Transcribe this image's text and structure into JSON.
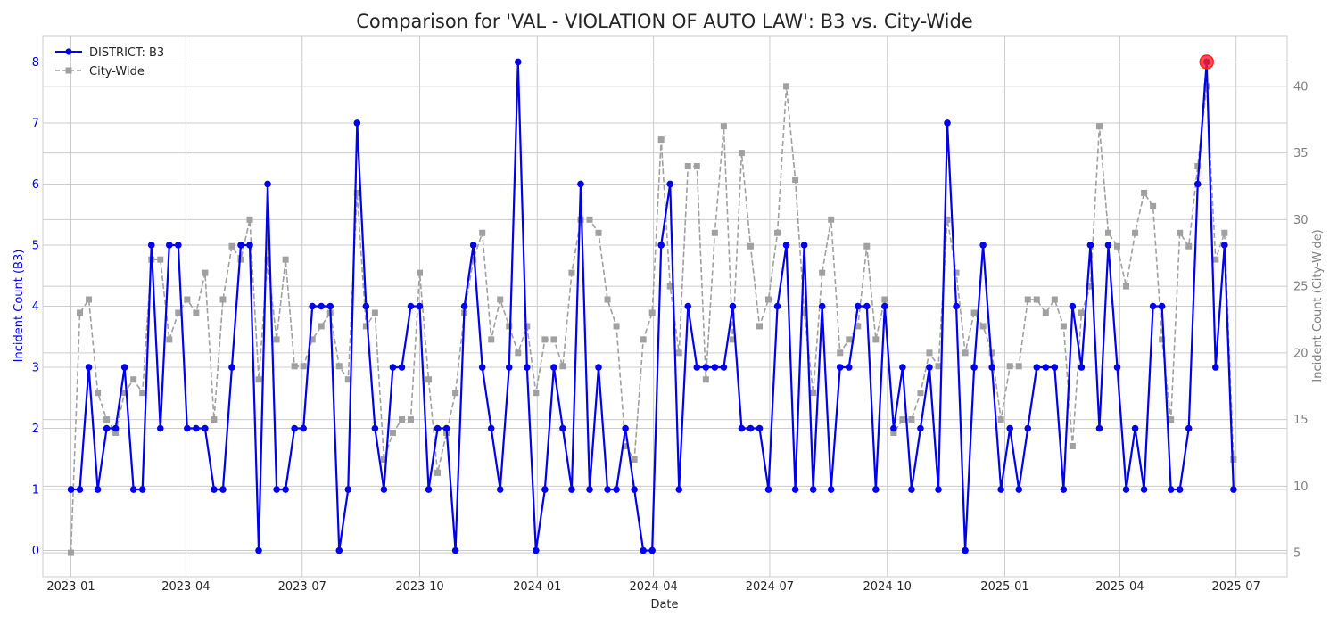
{
  "chart_data": {
    "type": "line",
    "title": "Comparison for 'VAL - VIOLATION OF AUTO LAW': B3 vs. City-Wide",
    "xlabel": "Date",
    "ylabel_left": "Incident Count (B3)",
    "ylabel_right": "Incident Count (City-Wide)",
    "x_range": [
      "2022-12-10",
      "2025-08-10"
    ],
    "ylim_left": [
      -0.43,
      8.43
    ],
    "ylim_right": [
      3.2,
      43.8
    ],
    "x_ticks": [
      {
        "date": "2023-01-01",
        "label": "2023-01"
      },
      {
        "date": "2023-04-01",
        "label": "2023-04"
      },
      {
        "date": "2023-07-01",
        "label": "2023-07"
      },
      {
        "date": "2023-10-01",
        "label": "2023-10"
      },
      {
        "date": "2024-01-01",
        "label": "2024-01"
      },
      {
        "date": "2024-04-01",
        "label": "2024-04"
      },
      {
        "date": "2024-07-01",
        "label": "2024-07"
      },
      {
        "date": "2024-10-01",
        "label": "2024-10"
      },
      {
        "date": "2025-01-01",
        "label": "2025-01"
      },
      {
        "date": "2025-04-01",
        "label": "2025-04"
      },
      {
        "date": "2025-07-01",
        "label": "2025-07"
      }
    ],
    "y_ticks_left": [
      "0",
      "1",
      "2",
      "3",
      "4",
      "5",
      "6",
      "7",
      "8"
    ],
    "y_ticks_right": [
      "5",
      "10",
      "15",
      "20",
      "25",
      "30",
      "35",
      "40"
    ],
    "grid": true,
    "legend_position": "top-left",
    "start_date": "2023-01-01",
    "step_days": 7,
    "series": [
      {
        "name": "DISTRICT: B3",
        "axis": "left",
        "color": "#0000ee",
        "marker": "circle",
        "line_style": "solid",
        "values": [
          1,
          1,
          3,
          1,
          2,
          2,
          3,
          1,
          1,
          5,
          2,
          5,
          5,
          2,
          2,
          2,
          1,
          1,
          3,
          5,
          5,
          0,
          6,
          1,
          1,
          2,
          2,
          4,
          4,
          4,
          0,
          1,
          7,
          4,
          2,
          1,
          3,
          3,
          4,
          4,
          1,
          2,
          2,
          0,
          4,
          5,
          3,
          2,
          1,
          3,
          8,
          3,
          0,
          1,
          3,
          2,
          1,
          6,
          1,
          3,
          1,
          1,
          2,
          1,
          0,
          0,
          5,
          6,
          1,
          4,
          3,
          3,
          3,
          3,
          4,
          2,
          2,
          2,
          1,
          4,
          5,
          1,
          5,
          1,
          4,
          1,
          3,
          3,
          4,
          4,
          1,
          4,
          2,
          3,
          1,
          2,
          3,
          1,
          7,
          4,
          0,
          3,
          5,
          3,
          1,
          2,
          1,
          2,
          3,
          3,
          3,
          1,
          4,
          3,
          5,
          2,
          5,
          3,
          1,
          2,
          1,
          4,
          4,
          1,
          1,
          2,
          6,
          8,
          3,
          5,
          1
        ]
      },
      {
        "name": "City-Wide",
        "axis": "right",
        "color": "#a0a0a0",
        "marker": "square",
        "line_style": "dashed",
        "values": [
          5,
          23,
          24,
          17,
          15,
          14,
          17,
          18,
          17,
          27,
          27,
          21,
          23,
          24,
          23,
          26,
          15,
          24,
          28,
          27,
          30,
          18,
          27,
          21,
          27,
          19,
          19,
          21,
          22,
          23,
          19,
          18,
          32,
          22,
          23,
          12,
          14,
          15,
          15,
          26,
          18,
          11,
          14,
          17,
          23,
          27,
          29,
          21,
          24,
          22,
          20,
          22,
          17,
          21,
          21,
          19,
          26,
          30,
          30,
          29,
          24,
          22,
          13,
          12,
          21,
          23,
          36,
          25,
          20,
          34,
          34,
          18,
          29,
          37,
          21,
          35,
          28,
          22,
          24,
          29,
          40,
          33,
          23,
          17,
          26,
          30,
          20,
          21,
          22,
          28,
          21,
          24,
          14,
          15,
          15,
          17,
          20,
          19,
          30,
          26,
          20,
          23,
          22,
          20,
          15,
          19,
          19,
          24,
          24,
          23,
          24,
          22,
          13,
          23,
          25,
          37,
          29,
          28,
          25,
          29,
          32,
          31,
          21,
          15,
          29,
          28,
          34,
          40,
          27,
          29,
          12
        ]
      }
    ],
    "highlight": {
      "date": "2025-06-08",
      "series": "DISTRICT: B3",
      "value": 8,
      "color": "#ff2020"
    }
  }
}
